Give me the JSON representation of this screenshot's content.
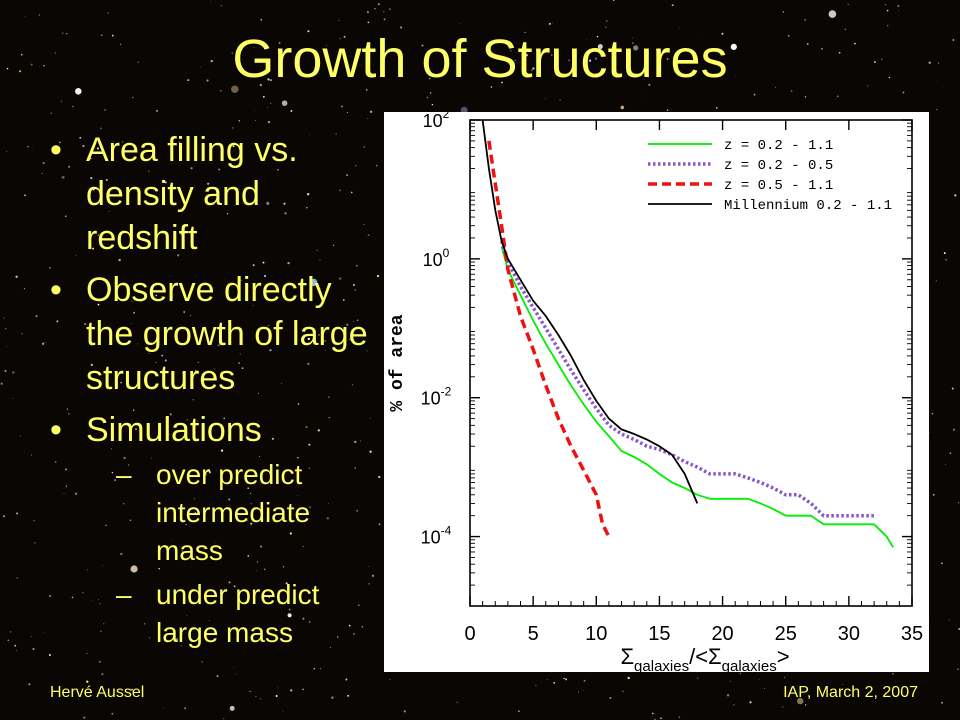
{
  "slide": {
    "title": "Growth of Structures",
    "bullets": [
      {
        "text": "Area filling vs. density and redshift"
      },
      {
        "text": "Observe directly the growth of large structures"
      },
      {
        "text": "Simulations"
      }
    ],
    "sub_bullets": [
      {
        "text": "over predict intermediate mass"
      },
      {
        "text": "under predict large mass"
      }
    ],
    "footer_left": "Hervé Aussel",
    "footer_right": "IAP, March 2, 2007"
  },
  "colors": {
    "title": "#ffff66",
    "background": "#0a0604",
    "series_green": "#00ee00",
    "series_purple": "#8855cc",
    "series_red": "#ee1111",
    "series_black": "#000000"
  },
  "chart_data": {
    "type": "line",
    "title": "",
    "xlabel_main": "Σ",
    "xlabel_sub1": "galaxies",
    "xlabel_mid": "/<Σ",
    "xlabel_sub2": "galaxies",
    "xlabel_end": ">",
    "ylabel": "% of area",
    "xscale": "linear",
    "yscale": "log",
    "xlim": [
      0,
      35
    ],
    "ylim_log10": [
      -5,
      2
    ],
    "x_ticks": [
      0,
      5,
      10,
      15,
      20,
      25,
      30,
      35
    ],
    "x_tick_labels": [
      "0",
      "5",
      "10",
      "15",
      "20",
      "25",
      "30",
      "35"
    ],
    "y_ticks_log10": [
      -4,
      -2,
      0,
      2
    ],
    "y_tick_bases": [
      "10",
      "10",
      "10",
      "10"
    ],
    "y_tick_exps": [
      "-4",
      "-2",
      "0",
      "2"
    ],
    "legend_position": "top-right",
    "series": [
      {
        "name": "z = 0.2 - 1.1",
        "style": "solid",
        "color": "#00ee00",
        "points": [
          [
            2.5,
            1.5
          ],
          [
            3,
            0.7
          ],
          [
            4,
            0.3
          ],
          [
            5,
            0.13
          ],
          [
            6,
            0.06
          ],
          [
            7,
            0.03
          ],
          [
            8,
            0.015
          ],
          [
            9,
            0.008
          ],
          [
            10,
            0.0045
          ],
          [
            11,
            0.0028
          ],
          [
            12,
            0.0017
          ],
          [
            13,
            0.0014
          ],
          [
            14,
            0.0011
          ],
          [
            15,
            0.0008
          ],
          [
            16,
            0.0006
          ],
          [
            17,
            0.0005
          ],
          [
            18,
            0.0004
          ],
          [
            19,
            0.00035
          ],
          [
            20,
            0.00035
          ],
          [
            21,
            0.00035
          ],
          [
            22,
            0.00035
          ],
          [
            23,
            0.0003
          ],
          [
            24,
            0.00025
          ],
          [
            25,
            0.0002
          ],
          [
            26,
            0.0002
          ],
          [
            27,
            0.0002
          ],
          [
            28,
            0.00015
          ],
          [
            29,
            0.00015
          ],
          [
            30,
            0.00015
          ],
          [
            31,
            0.00015
          ],
          [
            32,
            0.00015
          ],
          [
            33,
            0.0001
          ],
          [
            33.5,
            7e-05
          ]
        ]
      },
      {
        "name": "z = 0.2 - 0.5",
        "style": "dotted",
        "color": "#8855cc",
        "points": [
          [
            2.5,
            1.8
          ],
          [
            3,
            0.9
          ],
          [
            4,
            0.4
          ],
          [
            5,
            0.2
          ],
          [
            6,
            0.1
          ],
          [
            7,
            0.05
          ],
          [
            8,
            0.025
          ],
          [
            9,
            0.013
          ],
          [
            10,
            0.007
          ],
          [
            11,
            0.004
          ],
          [
            12,
            0.003
          ],
          [
            13,
            0.0025
          ],
          [
            14,
            0.002
          ],
          [
            15,
            0.0018
          ],
          [
            16,
            0.0015
          ],
          [
            17,
            0.0012
          ],
          [
            18,
            0.001
          ],
          [
            19,
            0.0008
          ],
          [
            20,
            0.0008
          ],
          [
            21,
            0.0008
          ],
          [
            22,
            0.0007
          ],
          [
            23,
            0.0006
          ],
          [
            24,
            0.0005
          ],
          [
            25,
            0.0004
          ],
          [
            26,
            0.0004
          ],
          [
            27,
            0.0003
          ],
          [
            28,
            0.0002
          ],
          [
            29,
            0.0002
          ],
          [
            30,
            0.0002
          ],
          [
            31,
            0.0002
          ],
          [
            32,
            0.0002
          ]
        ]
      },
      {
        "name": "z = 0.5 - 1.1",
        "style": "dashed",
        "color": "#ee1111",
        "points": [
          [
            1.5,
            50
          ],
          [
            2,
            12
          ],
          [
            2.5,
            3
          ],
          [
            3,
            0.7
          ],
          [
            4,
            0.15
          ],
          [
            5,
            0.05
          ],
          [
            6,
            0.015
          ],
          [
            7,
            0.005
          ],
          [
            8,
            0.002
          ],
          [
            9,
            0.0009
          ],
          [
            10,
            0.0004
          ],
          [
            10.5,
            0.00015
          ],
          [
            11,
            0.0001
          ]
        ]
      },
      {
        "name": "Millennium 0.2 - 1.1",
        "style": "solid",
        "color": "#000000",
        "points": [
          [
            1,
            100
          ],
          [
            1.5,
            20
          ],
          [
            2,
            5
          ],
          [
            2.5,
            1.8
          ],
          [
            3,
            1.0
          ],
          [
            4,
            0.5
          ],
          [
            5,
            0.25
          ],
          [
            6,
            0.15
          ],
          [
            7,
            0.08
          ],
          [
            8,
            0.04
          ],
          [
            9,
            0.018
          ],
          [
            10,
            0.009
          ],
          [
            11,
            0.005
          ],
          [
            12,
            0.0035
          ],
          [
            13,
            0.003
          ],
          [
            14,
            0.0025
          ],
          [
            15,
            0.002
          ],
          [
            16,
            0.0015
          ],
          [
            17,
            0.0008
          ],
          [
            18,
            0.0003
          ]
        ]
      }
    ]
  }
}
